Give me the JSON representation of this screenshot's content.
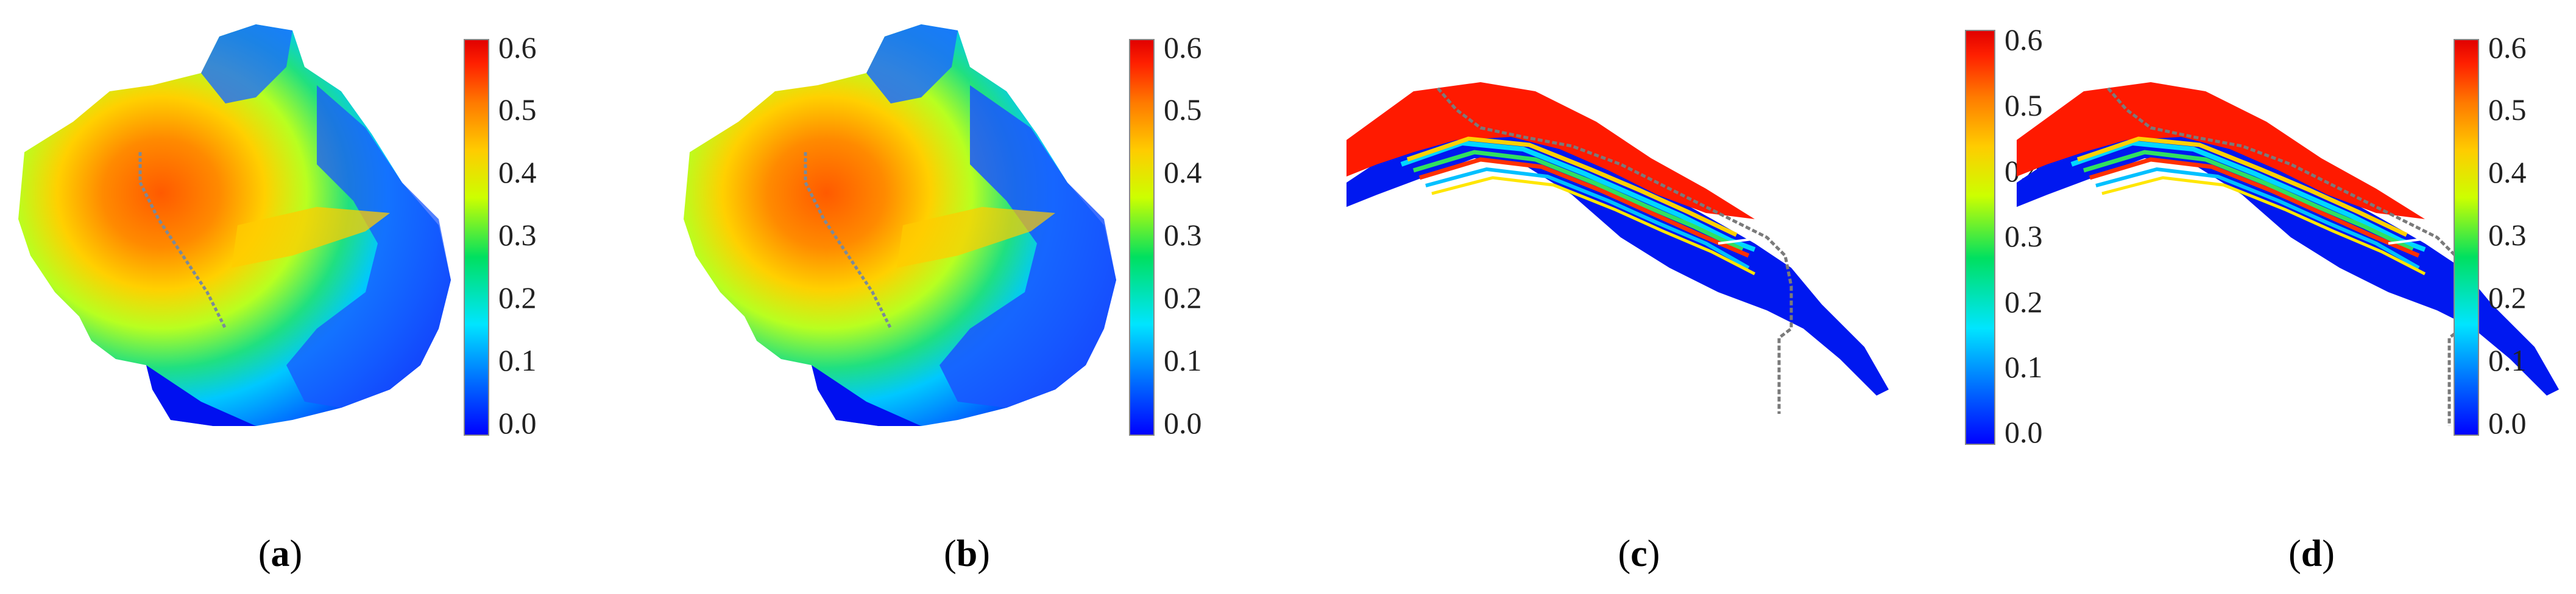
{
  "colorbar": {
    "ticks": [
      "0.6",
      "0.5",
      "0.4",
      "0.3",
      "0.2",
      "0.1",
      "0.0"
    ],
    "range": [
      0.0,
      0.6
    ],
    "colormap": [
      "#0000ff",
      "#0070ff",
      "#00e5ff",
      "#00e060",
      "#ccff00",
      "#ffcc00",
      "#ff7a00",
      "#ff2000",
      "#e00000"
    ]
  },
  "panels": [
    {
      "id": "a",
      "view": "map",
      "caption_open": "(",
      "caption_letter": "a",
      "caption_close": ")"
    },
    {
      "id": "b",
      "view": "map",
      "caption_open": "(",
      "caption_letter": "b",
      "caption_close": ")"
    },
    {
      "id": "c",
      "view": "section",
      "caption_open": "(",
      "caption_letter": "c",
      "caption_close": ")"
    },
    {
      "id": "d",
      "view": "section",
      "caption_open": "(",
      "caption_letter": "d",
      "caption_close": ")"
    }
  ]
}
